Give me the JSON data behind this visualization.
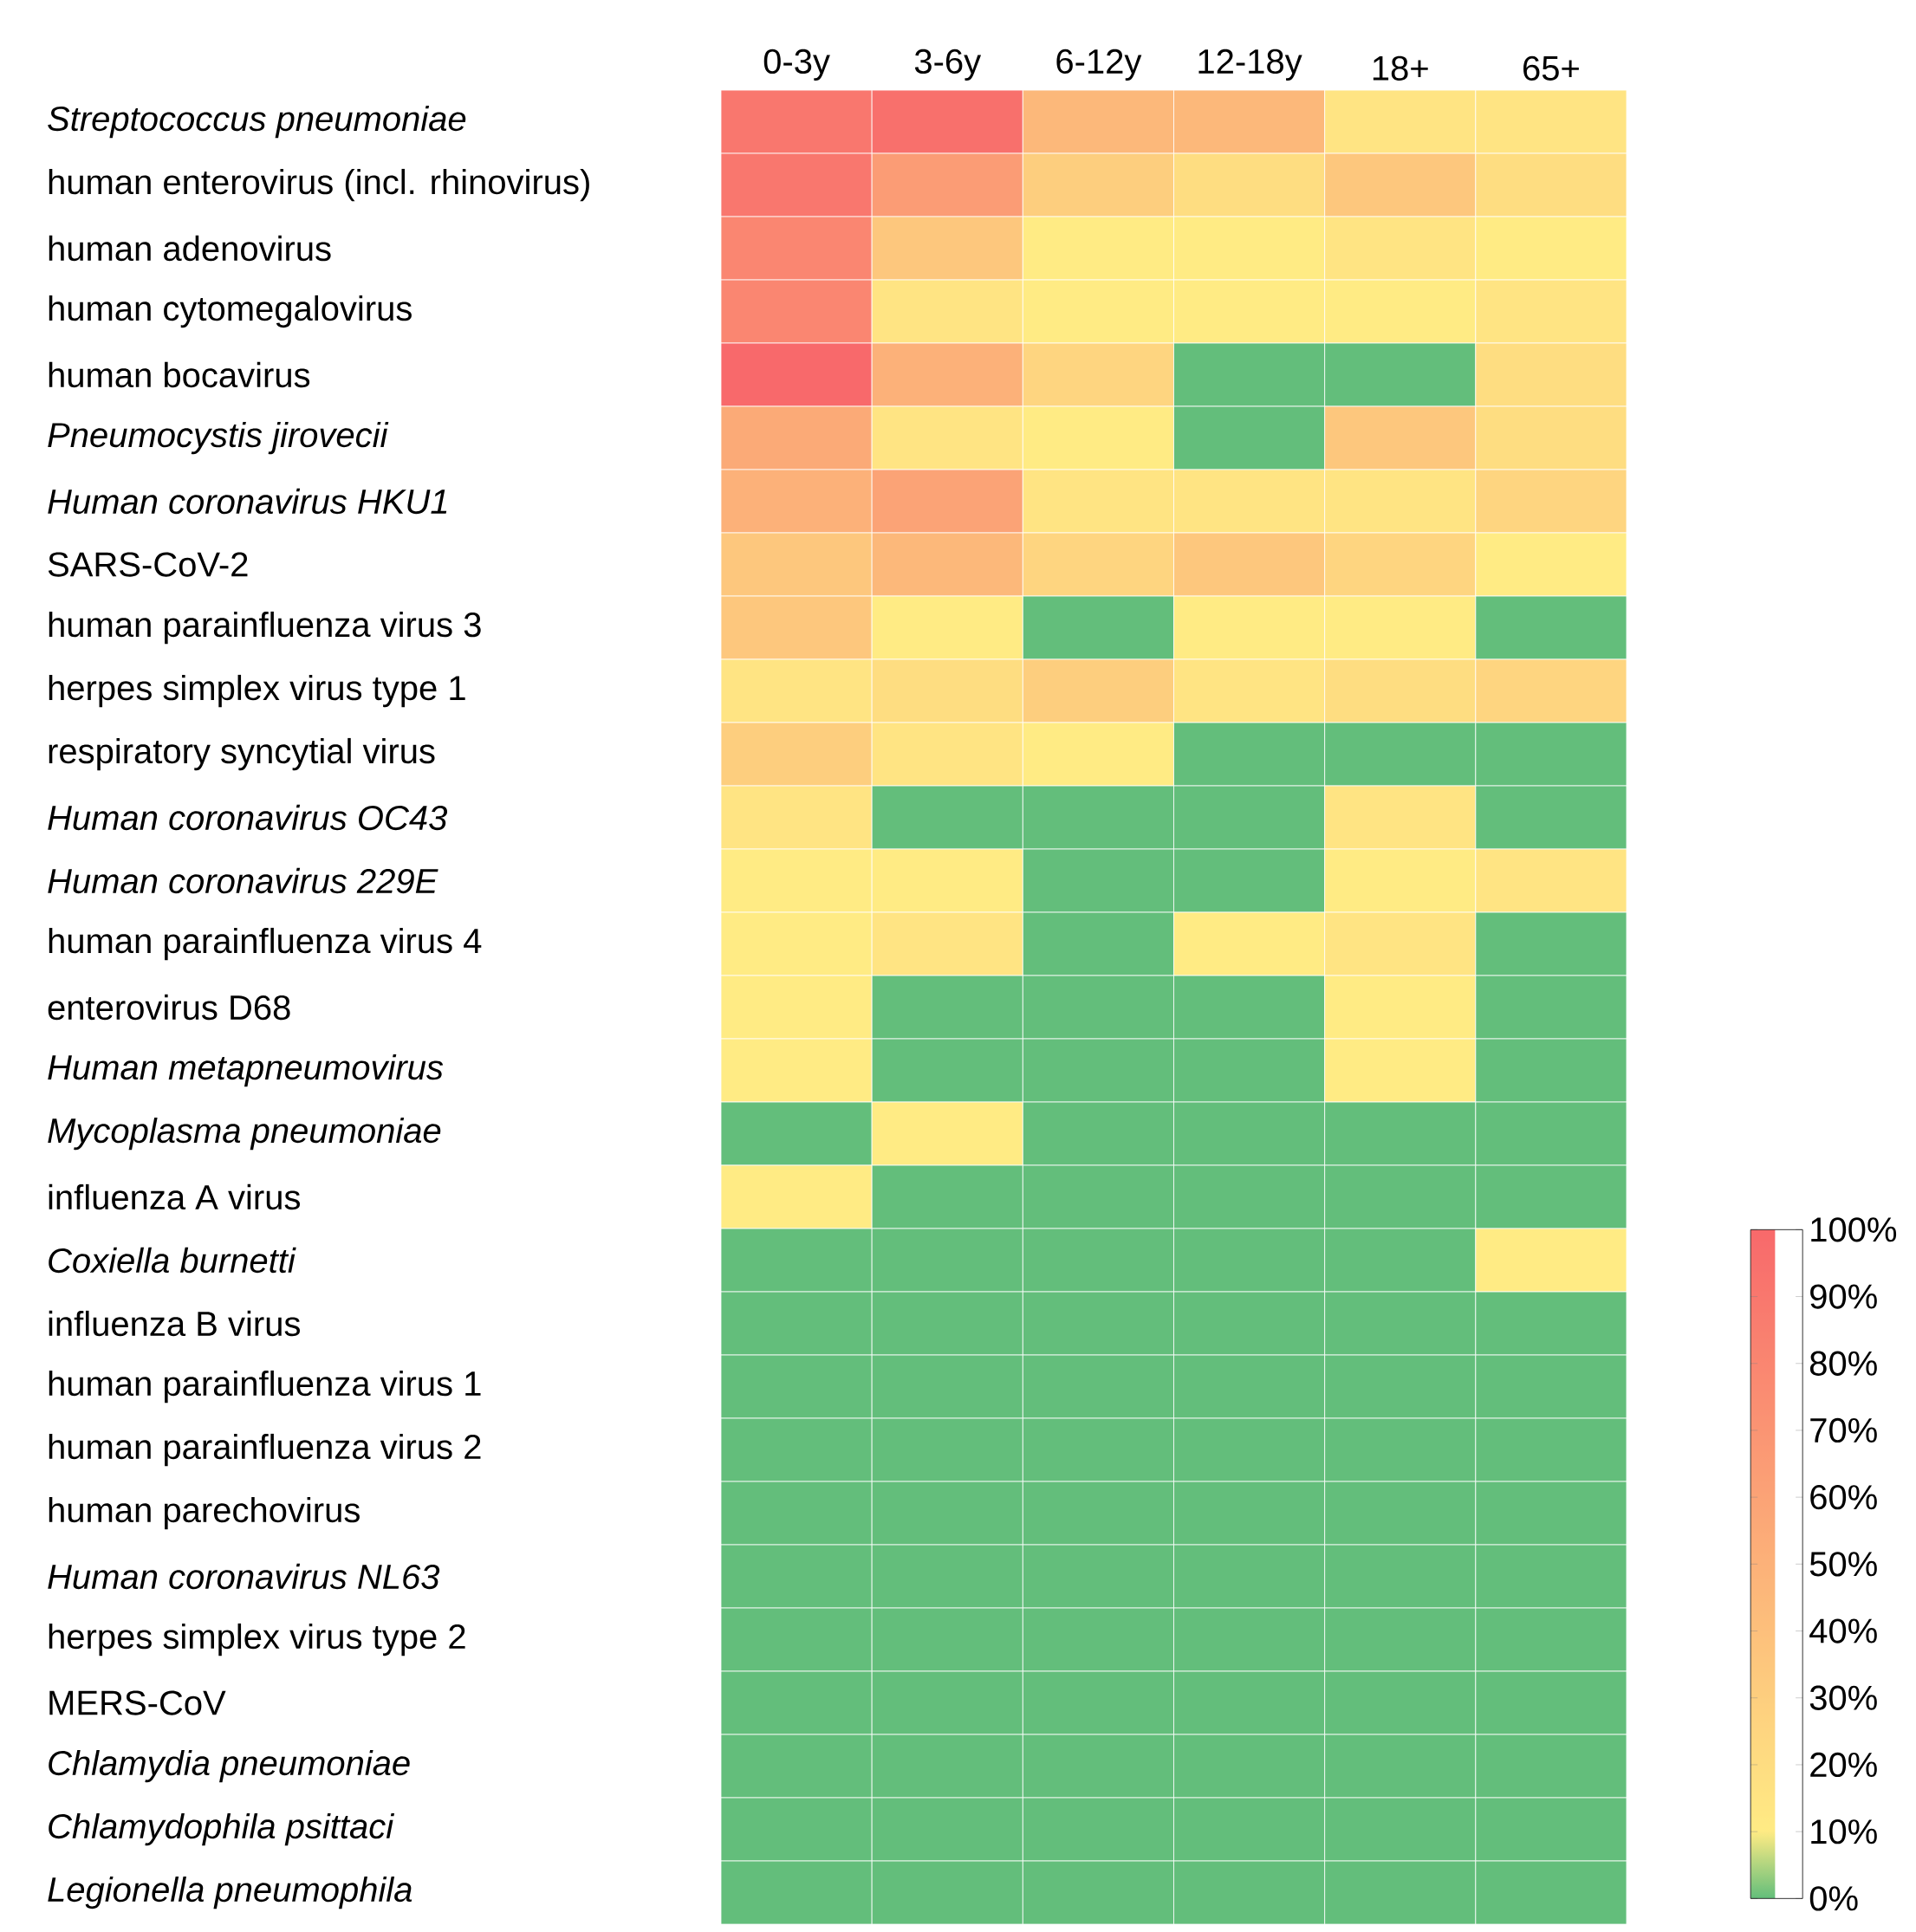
{
  "chart_data": {
    "type": "heatmap",
    "categories": [
      "0-3y",
      "3-6y",
      "6-12y",
      "12-18y",
      "18+",
      "65+"
    ],
    "y_categories": [
      "*Streptococcus pneumoniae*",
      "human enterovirus (incl. rhinovirus)",
      "human adenovirus",
      "human cytomegalovirus",
      "human bocavirus",
      "*Pneumocystis jirovecii*",
      "*Human coronavirus HKU1*",
      "SARS-CoV-2",
      "human parainfluenza virus 3",
      "herpes simplex virus type 1",
      "respiratory syncytial virus",
      "*Human coronavirus OC43*",
      "*Human coronavirus 229E*",
      "human parainfluenza virus 4",
      "enterovirus D68",
      "*Human metapneumovirus*",
      "*Mycoplasma pneumoniae*",
      "influenza A virus",
      "*Coxiella burnetti*",
      "influenza B virus",
      "human parainfluenza virus 1",
      "human parainfluenza virus 2",
      "human parechovirus",
      "*Human coronavirus NL63*",
      "herpes simplex virus type 2",
      "MERS-CoV",
      "*Chlamydia pneumoniae*",
      "*Chlamydophila psittaci*",
      "*Legionella pneumophila*"
    ],
    "cells": [
      [
        90,
        95,
        45,
        45,
        15,
        15
      ],
      [
        90,
        65,
        30,
        20,
        35,
        20
      ],
      [
        80,
        35,
        10,
        10,
        15,
        10
      ],
      [
        80,
        15,
        10,
        10,
        10,
        15
      ],
      [
        100,
        50,
        25,
        0,
        0,
        20
      ],
      [
        55,
        15,
        10,
        0,
        35,
        20
      ],
      [
        50,
        60,
        15,
        15,
        15,
        25
      ],
      [
        35,
        45,
        25,
        35,
        25,
        10
      ],
      [
        35,
        10,
        0,
        10,
        10,
        0
      ],
      [
        15,
        20,
        30,
        15,
        20,
        25
      ],
      [
        30,
        15,
        10,
        0,
        0,
        0
      ],
      [
        15,
        0,
        0,
        0,
        15,
        0
      ],
      [
        10,
        10,
        0,
        0,
        10,
        15
      ],
      [
        10,
        15,
        0,
        10,
        15,
        0
      ],
      [
        10,
        0,
        0,
        0,
        10,
        0
      ],
      [
        10,
        0,
        0,
        0,
        10,
        0
      ],
      [
        0,
        10,
        0,
        0,
        0,
        0
      ],
      [
        10,
        0,
        0,
        0,
        0,
        0
      ],
      [
        0,
        0,
        0,
        0,
        0,
        10
      ],
      [
        0,
        0,
        0,
        0,
        0,
        0
      ],
      [
        0,
        0,
        0,
        0,
        0,
        0
      ],
      [
        0,
        0,
        0,
        0,
        0,
        0
      ],
      [
        0,
        0,
        0,
        0,
        0,
        0
      ],
      [
        0,
        0,
        0,
        0,
        0,
        0
      ],
      [
        0,
        0,
        0,
        0,
        0,
        0
      ],
      [
        0,
        0,
        0,
        0,
        0,
        0
      ],
      [
        0,
        0,
        0,
        0,
        0,
        0
      ],
      [
        0,
        0,
        0,
        0,
        0,
        0
      ],
      [
        0,
        0,
        0,
        0,
        0,
        0
      ]
    ],
    "clim": [
      0,
      100
    ],
    "cticks": [
      {
        "value": 100,
        "label": "100%"
      },
      {
        "value": 90,
        "label": "90%"
      },
      {
        "value": 80,
        "label": "80%"
      },
      {
        "value": 70,
        "label": "70%"
      },
      {
        "value": 60,
        "label": "60%"
      },
      {
        "value": 50,
        "label": "50%"
      },
      {
        "value": 40,
        "label": "40%"
      },
      {
        "value": 30,
        "label": "30%"
      },
      {
        "value": 20,
        "label": "20%"
      },
      {
        "value": 10,
        "label": "10%"
      },
      {
        "value": 0,
        "label": "0%"
      }
    ]
  }
}
